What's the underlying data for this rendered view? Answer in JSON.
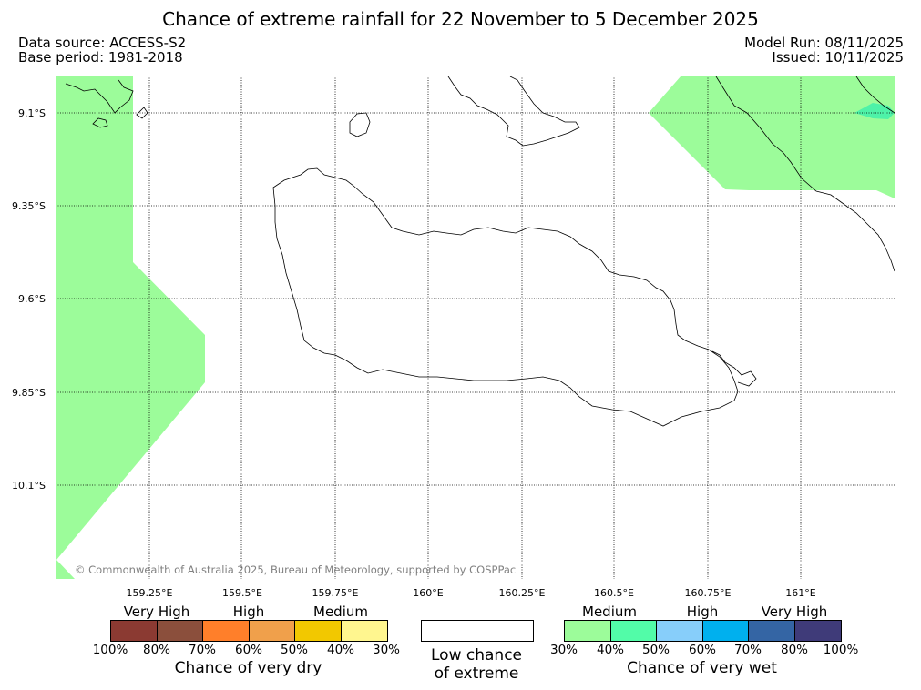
{
  "title": "Chance of extreme rainfall for 22 November to 5 December 2025",
  "data_source": "Data source: ACCESS-S2",
  "base_period": "Base period: 1981-2018",
  "model_run": "Model Run: 08/11/2025",
  "issued": "Issued: 10/11/2025",
  "map": {
    "lat_labels": [
      "9.1°S",
      "9.35°S",
      "9.6°S",
      "9.85°S",
      "10.1°S"
    ],
    "lon_labels": [
      "159.25°E",
      "159.5°E",
      "159.75°E",
      "160°E",
      "160.25°E",
      "160.5°E",
      "160.75°E",
      "161°E"
    ],
    "copyright": "© Commonwealth of Australia 2025, Bureau of Meteorology, supported by COSPPac",
    "colors": {
      "medium_wet": "#9cfc9a",
      "high_wet": "#4ef2a8",
      "coast": "#000000"
    }
  },
  "legend": {
    "dry": {
      "categories": [
        "Very High",
        "High",
        "Medium"
      ],
      "colors": [
        "#8b3a32",
        "#8b4f3c",
        "#ff7f2a",
        "#f0a04b",
        "#f2c800",
        "#fff68f"
      ],
      "ticks": [
        "100%",
        "80%",
        "70%",
        "60%",
        "50%",
        "40%",
        "30%"
      ],
      "title": "Chance of very dry"
    },
    "low": {
      "line1": "Low chance",
      "line2": "of extreme"
    },
    "wet": {
      "categories": [
        "Medium",
        "High",
        "Very High"
      ],
      "colors": [
        "#9cfc9a",
        "#52fca8",
        "#87cefa",
        "#00b0ee",
        "#3465a4",
        "#3f3b79"
      ],
      "ticks": [
        "30%",
        "40%",
        "50%",
        "60%",
        "70%",
        "80%",
        "100%"
      ],
      "title": "Chance of very wet"
    }
  }
}
